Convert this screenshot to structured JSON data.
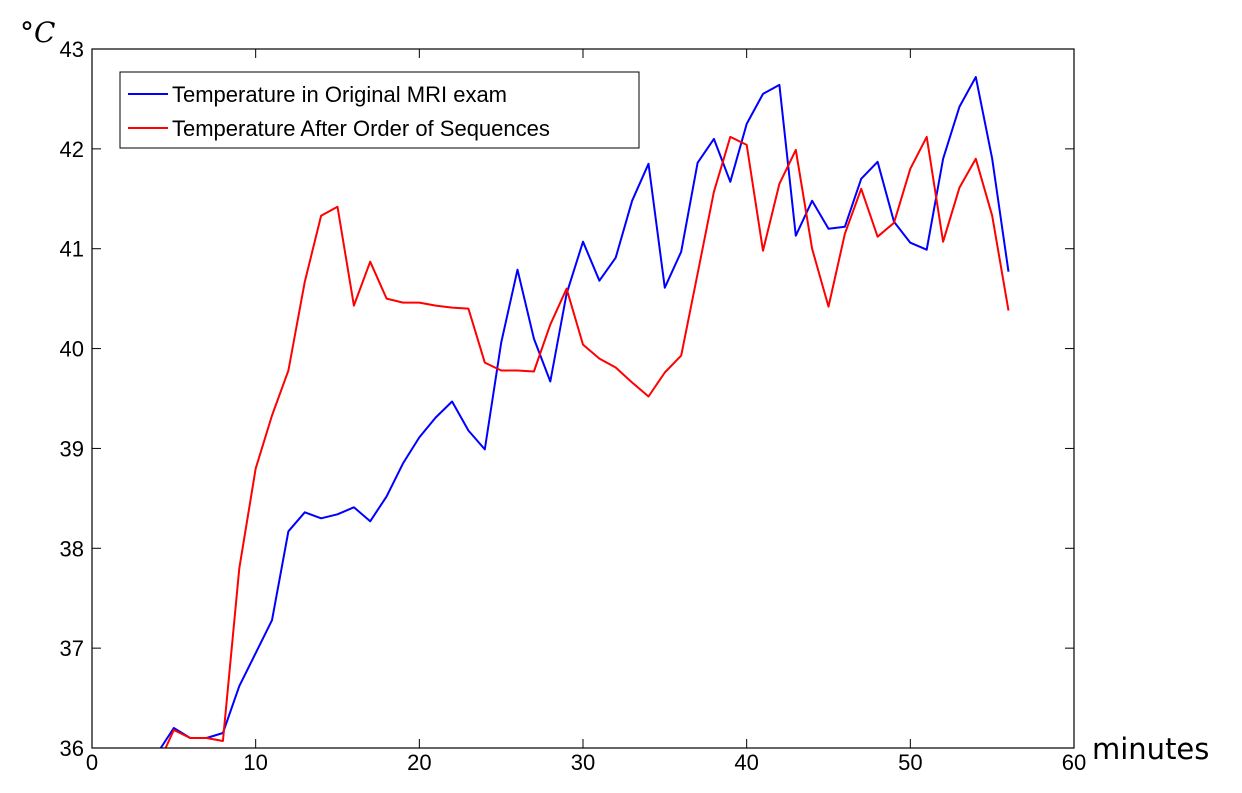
{
  "chart_data": {
    "type": "line",
    "xlabel": "minutes",
    "ylabel": "°𝐶",
    "xlim": [
      0,
      60
    ],
    "ylim": [
      36,
      43
    ],
    "xticks": [
      "0",
      "10",
      "20",
      "30",
      "40",
      "50",
      "60"
    ],
    "yticks": [
      "36",
      "37",
      "38",
      "39",
      "40",
      "41",
      "42",
      "43"
    ],
    "grid": false,
    "legend_position": "top-left",
    "series": [
      {
        "name": "Temperature in Original MRI exam",
        "color": "#0000ff",
        "x": [
          4,
          5,
          6,
          7,
          8,
          9,
          10,
          11,
          12,
          13,
          14,
          15,
          16,
          17,
          18,
          19,
          20,
          21,
          22,
          23,
          24,
          25,
          26,
          27,
          28,
          29,
          30,
          31,
          32,
          33,
          34,
          35,
          36,
          37,
          38,
          39,
          40,
          41,
          42,
          43,
          44,
          45,
          46,
          47,
          48,
          49,
          50,
          51,
          52,
          53,
          54,
          55,
          56
        ],
        "values": [
          35.95,
          36.2,
          36.1,
          36.1,
          36.15,
          36.62,
          36.95,
          37.28,
          38.17,
          38.36,
          38.3,
          38.34,
          38.41,
          38.27,
          38.52,
          38.85,
          39.11,
          39.31,
          39.47,
          39.18,
          38.99,
          40.06,
          40.79,
          40.1,
          39.67,
          40.55,
          41.07,
          40.68,
          40.91,
          41.48,
          41.85,
          40.61,
          40.97,
          41.86,
          42.1,
          41.67,
          42.25,
          42.55,
          42.64,
          41.13,
          41.48,
          41.2,
          41.22,
          41.7,
          41.87,
          41.27,
          41.06,
          40.99,
          41.9,
          42.42,
          42.72,
          41.9,
          40.77
        ]
      },
      {
        "name": "Temperature After Order of Sequences",
        "color": "#ff0000",
        "x": [
          4.5,
          5,
          6,
          7,
          8,
          9,
          10,
          11,
          12,
          13,
          14,
          15,
          16,
          17,
          18,
          19,
          20,
          21,
          22,
          23,
          24,
          25,
          26,
          27,
          28,
          29,
          30,
          31,
          32,
          33,
          34,
          35,
          36,
          37,
          38,
          39,
          40,
          41,
          42,
          43,
          44,
          45,
          46,
          47,
          48,
          49,
          50,
          51,
          52,
          53,
          54,
          55,
          56
        ],
        "values": [
          36.0,
          36.18,
          36.1,
          36.1,
          36.07,
          37.8,
          38.8,
          39.33,
          39.78,
          40.67,
          41.33,
          41.42,
          40.43,
          40.87,
          40.5,
          40.46,
          40.46,
          40.43,
          40.41,
          40.4,
          39.86,
          39.78,
          39.78,
          39.77,
          40.24,
          40.6,
          40.04,
          39.9,
          39.81,
          39.66,
          39.52,
          39.76,
          39.93,
          40.75,
          41.57,
          42.12,
          42.04,
          40.98,
          41.65,
          41.99,
          41.0,
          40.42,
          41.15,
          41.6,
          41.12,
          41.26,
          41.8,
          42.12,
          41.07,
          41.61,
          41.9,
          41.33,
          40.38
        ]
      }
    ]
  }
}
